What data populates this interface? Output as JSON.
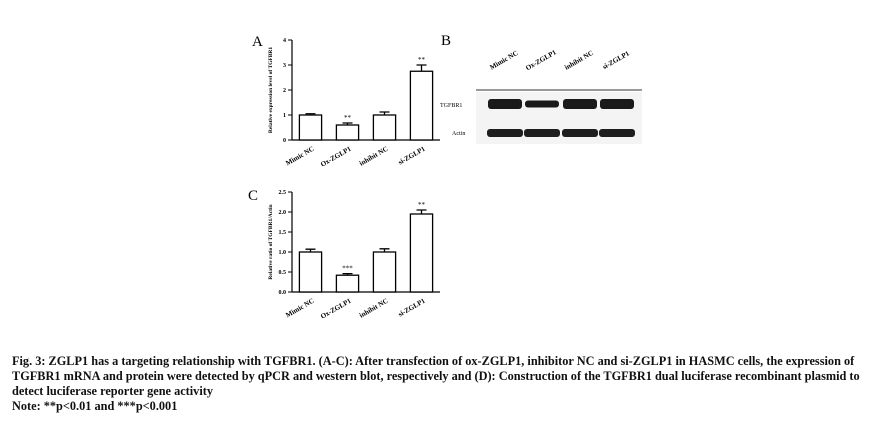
{
  "chart_data": [
    {
      "type": "bar",
      "panel_label": "A",
      "ylabel": "Relative expression level of TGFBR1",
      "categories": [
        "Mimic NC",
        "Ox-ZGLP1",
        "inhibit NC",
        "si-ZGLP1"
      ],
      "values": [
        1.0,
        0.6,
        1.0,
        2.75
      ],
      "errors": [
        0.05,
        0.08,
        0.12,
        0.25
      ],
      "significance": [
        null,
        "**",
        null,
        "**"
      ],
      "color": "#ffffff",
      "ylim": [
        0,
        4
      ],
      "yticks": [
        0,
        1,
        2,
        3,
        4
      ]
    },
    {
      "type": "bar",
      "panel_label": "C",
      "ylabel": "Relative ratio of TGFBR1/Actin",
      "categories": [
        "Mimic NC",
        "Ox-ZGLP1",
        "inhibit NC",
        "si-ZGLP1"
      ],
      "values": [
        1.0,
        0.42,
        1.0,
        1.95
      ],
      "errors": [
        0.07,
        0.04,
        0.08,
        0.1
      ],
      "significance": [
        null,
        "***",
        null,
        "**"
      ],
      "color": "#ffffff",
      "ylim": [
        0,
        2.5
      ],
      "yticks": [
        {
          "value": 0,
          "label": "0.0"
        },
        0.5,
        {
          "value": 1,
          "label": "1.0"
        },
        1.5,
        {
          "value": 2,
          "label": "2.0"
        },
        2.5
      ]
    }
  ],
  "blot": {
    "panel_label": "B",
    "lanes": [
      "Mimic NC",
      "Ox-ZGLP1",
      "inhibit NC",
      "si-ZGLP1"
    ],
    "rows": [
      "TGFBR1",
      "Actin"
    ]
  },
  "caption": {
    "title": "Fig. 3: ZGLP1 has a targeting relationship with TGFBR1. (A-C): After transfection of ox-ZGLP1, inhibitor NC and si-ZGLP1 in HASMC cells, the expression of TGFBR1 mRNA and protein were detected by qPCR and western blot, respectively and (D): Construction of the TGFBR1 dual luciferase recombinant plasmid to detect luciferase reporter gene activity",
    "note": "Note: **p<0.01 and ***p<0.001"
  }
}
